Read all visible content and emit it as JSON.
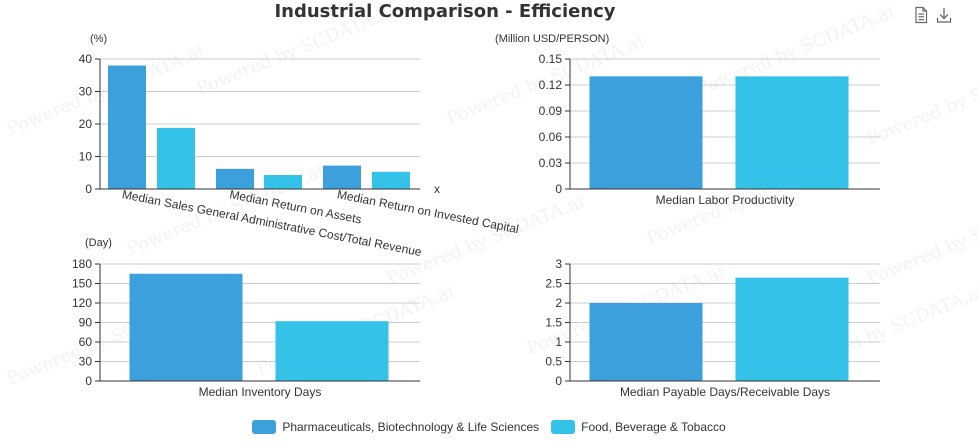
{
  "title": "Industrial Comparison - Efficiency",
  "toolbar": {
    "data_view_icon": "document-icon",
    "download_icon": "download-icon"
  },
  "watermark": "Powered by SCDATA.ai",
  "colors": {
    "series1": "#3ba0dc",
    "series2": "#35c2e8",
    "axis": "#333333",
    "grid": "#cccccc"
  },
  "legend": [
    {
      "name": "Pharmaceuticals, Biotechnology & Life Sciences",
      "color": "#3ba0dc"
    },
    {
      "name": "Food, Beverage & Tobacco",
      "color": "#35c2e8"
    }
  ],
  "chart_data": [
    {
      "type": "bar",
      "unit_label": "(%)",
      "xlabel": "x",
      "categories": [
        "Median Sales General Administrative Cost/Total Revenue",
        "Median Return on Assets",
        "Median Return on Invested Capital"
      ],
      "ylim": [
        0,
        40
      ],
      "yticks": [
        0,
        10,
        20,
        30,
        40
      ],
      "series": [
        {
          "name": "Pharmaceuticals, Biotechnology & Life Sciences",
          "values": [
            38,
            6.2,
            7.2
          ]
        },
        {
          "name": "Food, Beverage & Tobacco",
          "values": [
            18.8,
            4.3,
            5.3
          ]
        }
      ]
    },
    {
      "type": "bar",
      "unit_label": "(Million USD/PERSON)",
      "categories": [
        "Median Labor Productivity"
      ],
      "ylim": [
        0,
        0.15
      ],
      "yticks": [
        "0",
        "0.03",
        "0.06",
        "0.09",
        "0.12",
        "0.15"
      ],
      "series": [
        {
          "name": "Pharmaceuticals, Biotechnology & Life Sciences",
          "values": [
            0.13
          ]
        },
        {
          "name": "Food, Beverage & Tobacco",
          "values": [
            0.13
          ]
        }
      ]
    },
    {
      "type": "bar",
      "unit_label": "(Day)",
      "categories": [
        "Median Inventory Days"
      ],
      "ylim": [
        0,
        180
      ],
      "yticks": [
        0,
        30,
        60,
        90,
        120,
        150,
        180
      ],
      "series": [
        {
          "name": "Pharmaceuticals, Biotechnology & Life Sciences",
          "values": [
            165
          ]
        },
        {
          "name": "Food, Beverage & Tobacco",
          "values": [
            92
          ]
        }
      ]
    },
    {
      "type": "bar",
      "unit_label": "",
      "categories": [
        "Median Payable Days/Receivable Days"
      ],
      "ylim": [
        0,
        3
      ],
      "yticks": [
        "0",
        "0.5",
        "1",
        "1.5",
        "2",
        "2.5",
        "3"
      ],
      "series": [
        {
          "name": "Pharmaceuticals, Biotechnology & Life Sciences",
          "values": [
            2.0
          ]
        },
        {
          "name": "Food, Beverage & Tobacco",
          "values": [
            2.65
          ]
        }
      ]
    }
  ]
}
